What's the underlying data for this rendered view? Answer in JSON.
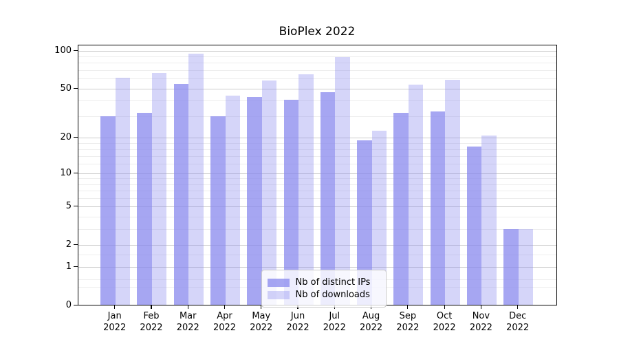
{
  "chart_data": {
    "type": "bar",
    "title": "BioPlex 2022",
    "categories": [
      "Jan 2022",
      "Feb 2022",
      "Mar 2022",
      "Apr 2022",
      "May 2022",
      "Jun 2022",
      "Jul 2022",
      "Aug 2022",
      "Sep 2022",
      "Oct 2022",
      "Nov 2022",
      "Dec 2022"
    ],
    "series": [
      {
        "name": "Nb of distinct IPs",
        "color": "#8888ee",
        "alpha": 0.75,
        "values": [
          30,
          32,
          55,
          30,
          43,
          41,
          47,
          19,
          32,
          33,
          17,
          3
        ]
      },
      {
        "name": "Nb of downloads",
        "color": "#8888ee",
        "alpha": 0.35,
        "values": [
          61,
          67,
          95,
          44,
          58,
          65,
          90,
          23,
          54,
          59,
          21,
          3
        ]
      }
    ],
    "yscale": "log(1+x)",
    "ylim": [
      0,
      111
    ],
    "y_major_ticks": [
      100,
      50,
      20,
      10,
      5,
      2,
      1,
      0
    ],
    "y_minor_gridlines": [
      0.4,
      0.6,
      1.5,
      3,
      4,
      6,
      7,
      8,
      9,
      12,
      14,
      16,
      18,
      30,
      40,
      60,
      70,
      80,
      90
    ],
    "xlabel": "",
    "ylabel": "",
    "grid": "horizontal-on",
    "legend_position": "lower-center",
    "colors": {
      "major_grid": "#cccccc",
      "minor_grid": "#ededed",
      "axis": "#000000",
      "background": "#ffffff"
    }
  }
}
